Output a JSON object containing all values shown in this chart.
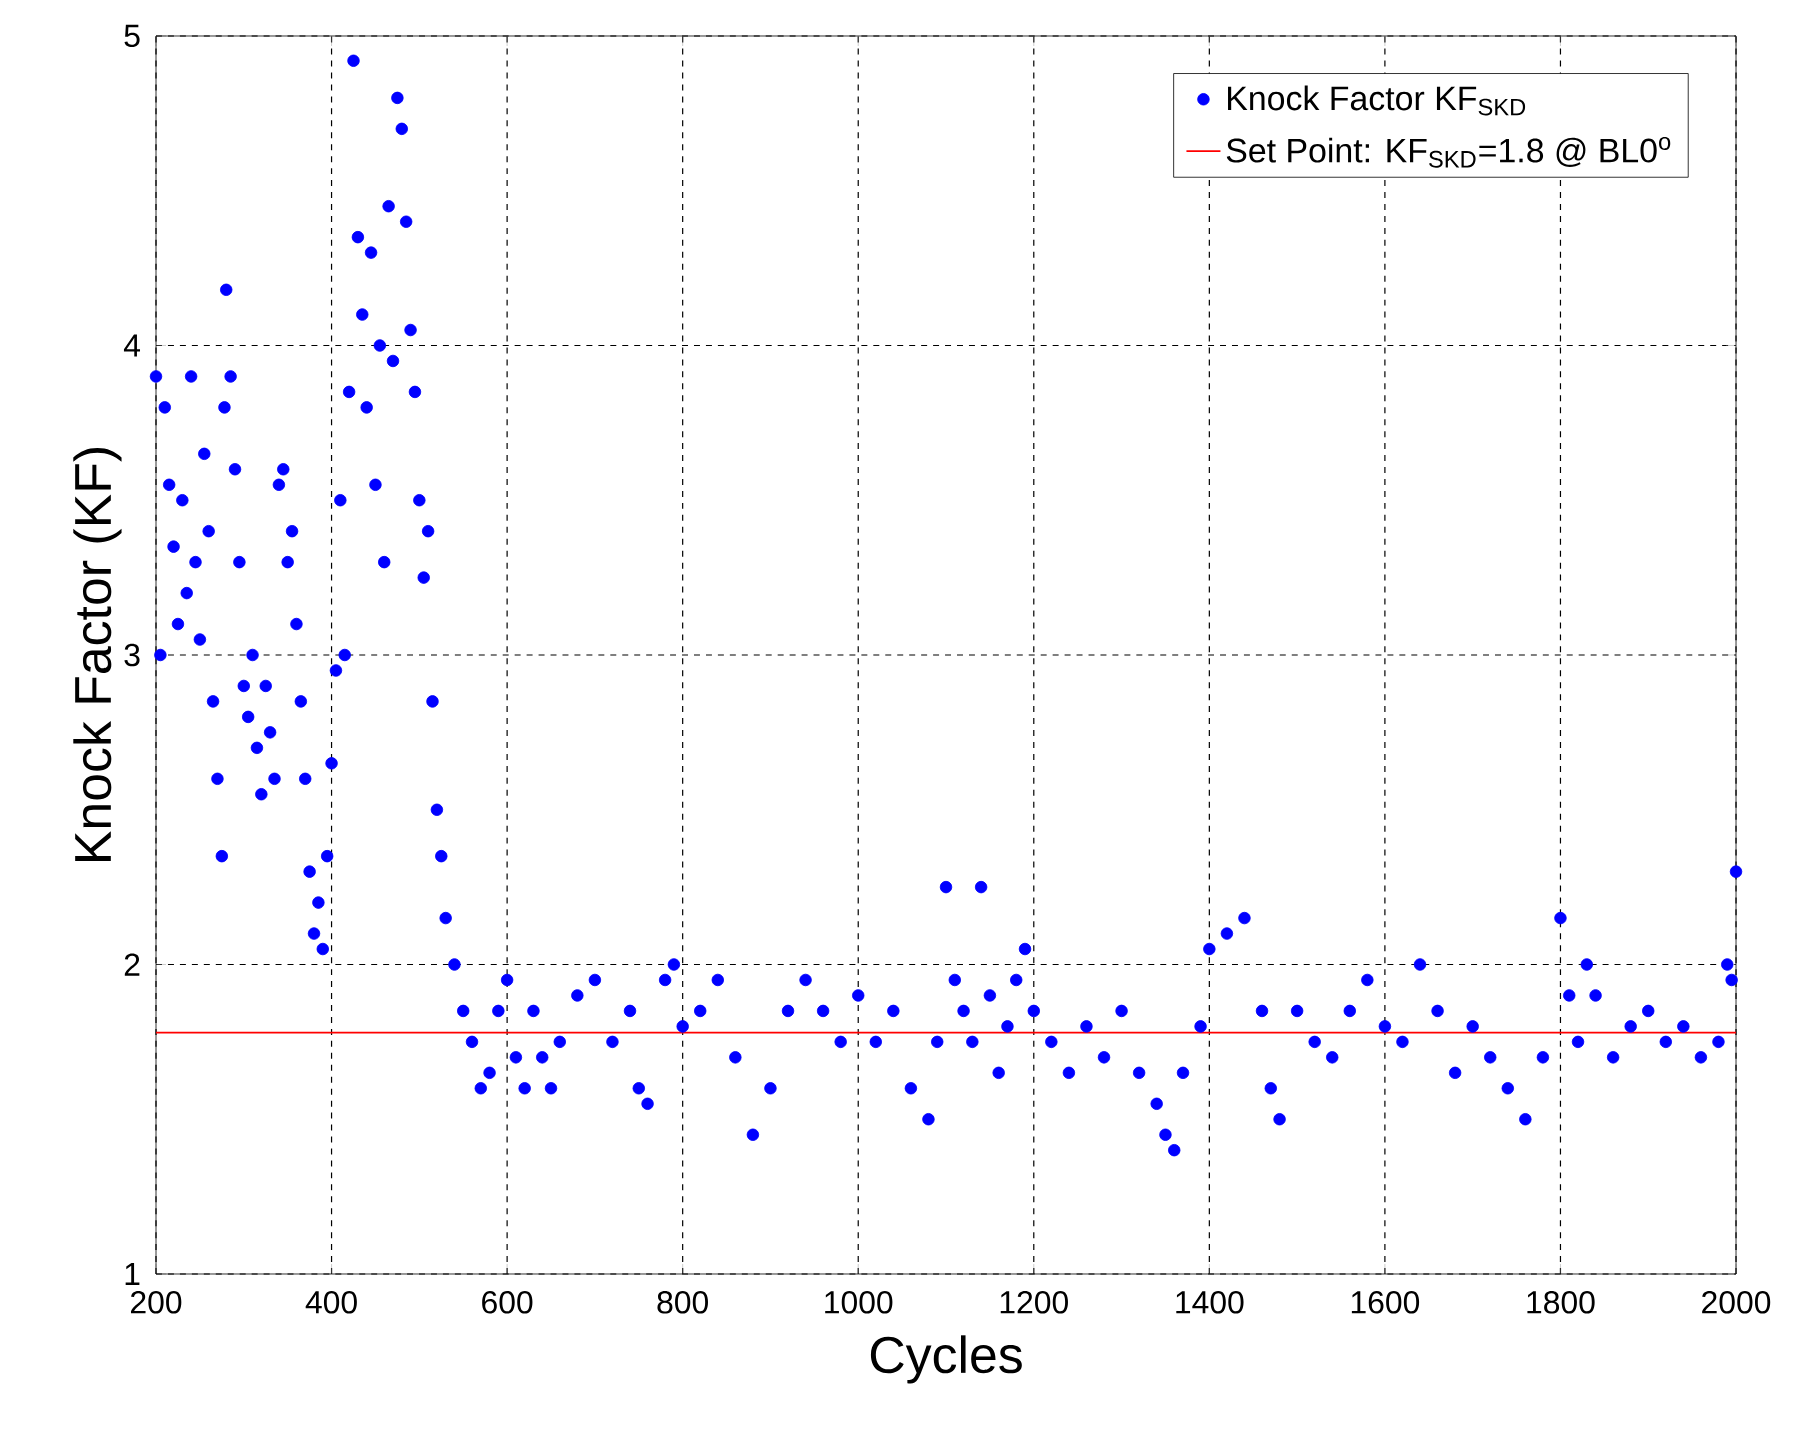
{
  "chart_data": {
    "type": "scatter",
    "xlabel": "Cycles",
    "ylabel": "Knock Factor (KF)",
    "xlim": [
      200,
      2000
    ],
    "ylim": [
      1,
      5
    ],
    "xticks": [
      200,
      400,
      600,
      800,
      1000,
      1200,
      1400,
      1600,
      1800,
      2000
    ],
    "yticks": [
      1,
      2,
      3,
      4,
      5
    ],
    "grid": true,
    "legend": "top right",
    "series": [
      {
        "name": "Knock Factor KF$_{SKD}$",
        "marker": "circle",
        "color": "#0000ff",
        "x": [
          200,
          205,
          210,
          215,
          220,
          225,
          230,
          235,
          240,
          245,
          250,
          255,
          260,
          265,
          270,
          275,
          278,
          280,
          285,
          290,
          295,
          300,
          305,
          310,
          315,
          320,
          325,
          330,
          335,
          340,
          345,
          350,
          355,
          360,
          365,
          370,
          375,
          380,
          385,
          390,
          395,
          400,
          405,
          410,
          415,
          420,
          425,
          430,
          435,
          440,
          445,
          450,
          455,
          460,
          465,
          470,
          475,
          480,
          485,
          490,
          495,
          500,
          505,
          510,
          515,
          520,
          525,
          530,
          540,
          550,
          560,
          570,
          580,
          590,
          600,
          610,
          620,
          630,
          640,
          650,
          660,
          680,
          700,
          720,
          740,
          750,
          760,
          780,
          790,
          800,
          820,
          840,
          860,
          880,
          900,
          920,
          940,
          960,
          980,
          1000,
          1020,
          1040,
          1060,
          1080,
          1090,
          1100,
          1110,
          1120,
          1130,
          1140,
          1150,
          1160,
          1170,
          1180,
          1190,
          1200,
          1220,
          1240,
          1260,
          1280,
          1300,
          1320,
          1340,
          1350,
          1360,
          1370,
          1390,
          1400,
          1420,
          1440,
          1460,
          1470,
          1480,
          1500,
          1520,
          1540,
          1560,
          1580,
          1600,
          1620,
          1640,
          1660,
          1680,
          1700,
          1720,
          1740,
          1760,
          1780,
          1800,
          1810,
          1820,
          1830,
          1840,
          1860,
          1880,
          1900,
          1920,
          1940,
          1960,
          1980,
          1990,
          1995,
          2000
        ],
        "values": [
          3.9,
          3.0,
          3.8,
          3.55,
          3.35,
          3.1,
          3.5,
          3.2,
          3.9,
          3.3,
          3.05,
          3.65,
          3.4,
          2.85,
          2.6,
          2.35,
          3.8,
          4.18,
          3.9,
          3.6,
          3.3,
          2.9,
          2.8,
          3.0,
          2.7,
          2.55,
          2.9,
          2.75,
          2.6,
          3.55,
          3.6,
          3.3,
          3.4,
          3.1,
          2.85,
          2.6,
          2.3,
          2.1,
          2.2,
          2.05,
          2.35,
          2.65,
          2.95,
          3.5,
          3.0,
          3.85,
          4.92,
          4.35,
          4.1,
          3.8,
          4.3,
          3.55,
          4.0,
          3.3,
          4.45,
          3.95,
          4.8,
          4.7,
          4.4,
          4.05,
          3.85,
          3.5,
          3.25,
          3.4,
          2.85,
          2.5,
          2.35,
          2.15,
          2.0,
          1.85,
          1.75,
          1.6,
          1.65,
          1.85,
          1.95,
          1.7,
          1.6,
          1.85,
          1.7,
          1.6,
          1.75,
          1.9,
          1.95,
          1.75,
          1.85,
          1.6,
          1.55,
          1.95,
          2.0,
          1.8,
          1.85,
          1.95,
          1.7,
          1.45,
          1.6,
          1.85,
          1.95,
          1.85,
          1.75,
          1.9,
          1.75,
          1.85,
          1.6,
          1.5,
          1.75,
          2.25,
          1.95,
          1.85,
          1.75,
          2.25,
          1.9,
          1.65,
          1.8,
          1.95,
          2.05,
          1.85,
          1.75,
          1.65,
          1.8,
          1.7,
          1.85,
          1.65,
          1.55,
          1.45,
          1.4,
          1.65,
          1.8,
          2.05,
          2.1,
          2.15,
          1.85,
          1.6,
          1.5,
          1.85,
          1.75,
          1.7,
          1.85,
          1.95,
          1.8,
          1.75,
          2.0,
          1.85,
          1.65,
          1.8,
          1.7,
          1.6,
          1.5,
          1.7,
          2.15,
          1.9,
          1.75,
          2.0,
          1.9,
          1.7,
          1.8,
          1.85,
          1.75,
          1.8,
          1.7,
          1.75,
          2.0,
          1.95,
          2.3
        ]
      },
      {
        "name": "Set Point: KF$_{SKD}$=1.8 @ BL0$^{o}$",
        "type": "line",
        "marker": "none",
        "color": "#ff0000",
        "x": [
          200,
          2000
        ],
        "values": [
          1.78,
          1.78
        ]
      }
    ]
  }
}
